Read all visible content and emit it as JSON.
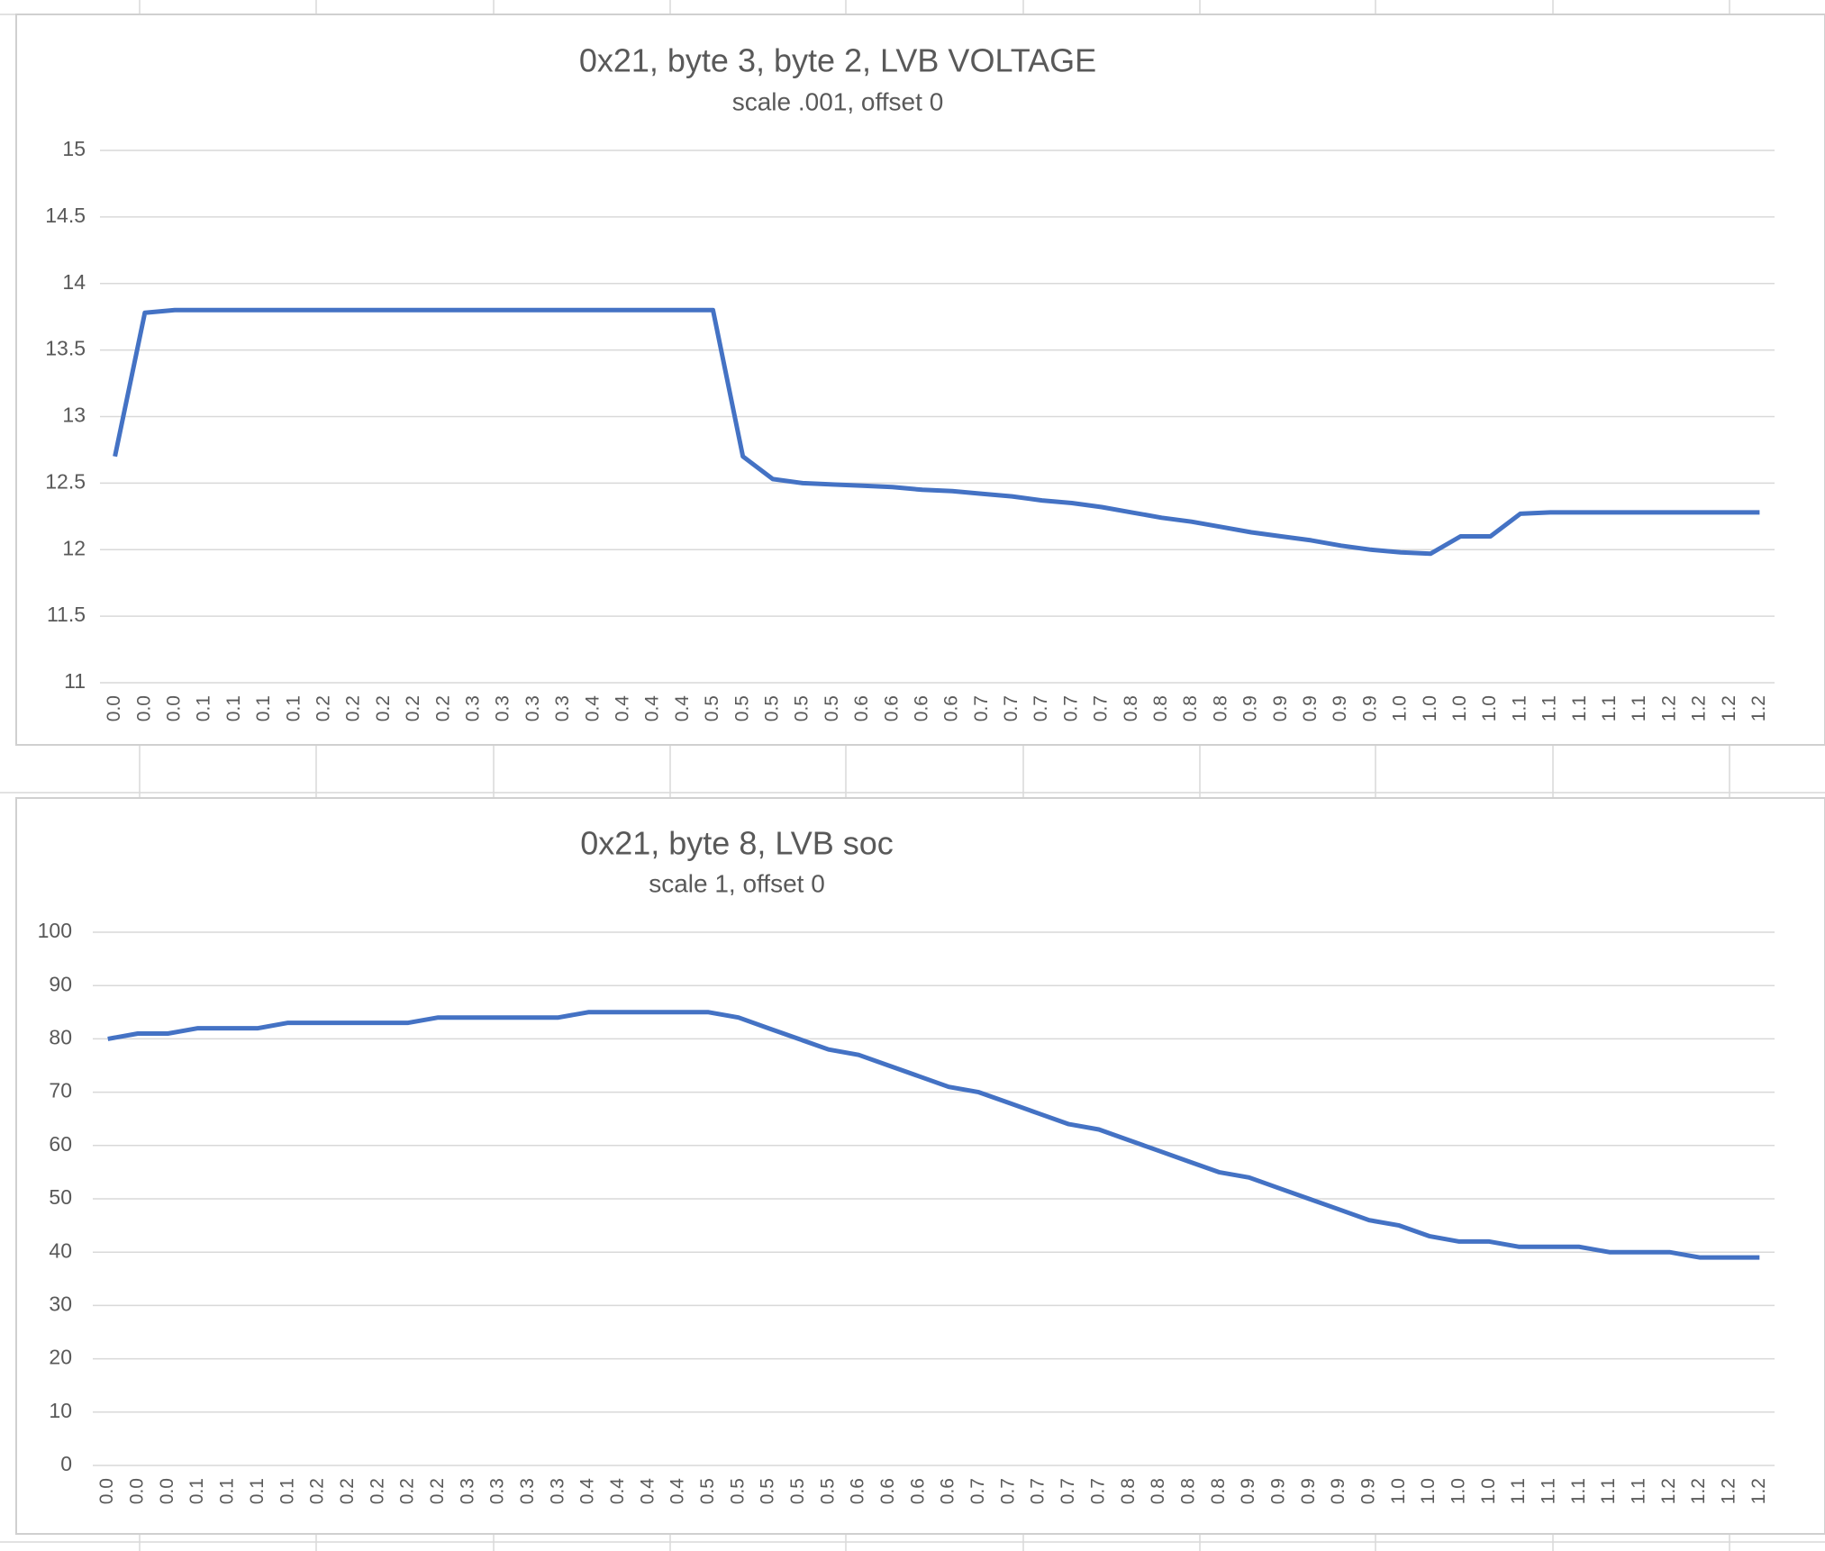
{
  "chart_data": [
    {
      "type": "line",
      "title": "0x21, byte 3, byte 2, LVB VOLTAGE",
      "subtitle": "scale .001, offset 0",
      "categories": [
        "0.0",
        "0.0",
        "0.0",
        "0.1",
        "0.1",
        "0.1",
        "0.1",
        "0.2",
        "0.2",
        "0.2",
        "0.2",
        "0.2",
        "0.3",
        "0.3",
        "0.3",
        "0.3",
        "0.4",
        "0.4",
        "0.4",
        "0.4",
        "0.5",
        "0.5",
        "0.5",
        "0.5",
        "0.5",
        "0.6",
        "0.6",
        "0.6",
        "0.6",
        "0.7",
        "0.7",
        "0.7",
        "0.7",
        "0.7",
        "0.8",
        "0.8",
        "0.8",
        "0.8",
        "0.9",
        "0.9",
        "0.9",
        "0.9",
        "0.9",
        "1.0",
        "1.0",
        "1.0",
        "1.0",
        "1.1",
        "1.1",
        "1.1",
        "1.1",
        "1.1",
        "1.2",
        "1.2",
        "1.2",
        "1.2"
      ],
      "series": [
        {
          "name": "LVB VOLTAGE",
          "color": "#4472c4",
          "values": [
            12.7,
            13.78,
            13.8,
            13.8,
            13.8,
            13.8,
            13.8,
            13.8,
            13.8,
            13.8,
            13.8,
            13.8,
            13.8,
            13.8,
            13.8,
            13.8,
            13.8,
            13.8,
            13.8,
            13.8,
            13.8,
            12.7,
            12.53,
            12.5,
            12.49,
            12.48,
            12.47,
            12.45,
            12.44,
            12.42,
            12.4,
            12.37,
            12.35,
            12.32,
            12.28,
            12.24,
            12.21,
            12.17,
            12.13,
            12.1,
            12.07,
            12.03,
            12.0,
            11.98,
            11.97,
            12.1,
            12.1,
            12.27,
            12.28,
            12.28,
            12.28,
            12.28,
            12.28,
            12.28,
            12.28,
            12.28
          ]
        }
      ],
      "ylim": [
        11,
        15
      ],
      "yticks": [
        11,
        11.5,
        12,
        12.5,
        13,
        13.5,
        14,
        14.5,
        15
      ],
      "grid": true
    },
    {
      "type": "line",
      "title": "0x21, byte 8, LVB soc",
      "subtitle": "scale 1, offset 0",
      "categories": [
        "0.0",
        "0.0",
        "0.0",
        "0.1",
        "0.1",
        "0.1",
        "0.1",
        "0.2",
        "0.2",
        "0.2",
        "0.2",
        "0.2",
        "0.3",
        "0.3",
        "0.3",
        "0.3",
        "0.4",
        "0.4",
        "0.4",
        "0.4",
        "0.5",
        "0.5",
        "0.5",
        "0.5",
        "0.5",
        "0.6",
        "0.6",
        "0.6",
        "0.6",
        "0.7",
        "0.7",
        "0.7",
        "0.7",
        "0.7",
        "0.8",
        "0.8",
        "0.8",
        "0.8",
        "0.9",
        "0.9",
        "0.9",
        "0.9",
        "0.9",
        "1.0",
        "1.0",
        "1.0",
        "1.0",
        "1.1",
        "1.1",
        "1.1",
        "1.1",
        "1.1",
        "1.2",
        "1.2",
        "1.2",
        "1.2"
      ],
      "series": [
        {
          "name": "LVB soc",
          "color": "#4472c4",
          "values": [
            80,
            81,
            81,
            82,
            82,
            82,
            83,
            83,
            83,
            83,
            83,
            84,
            84,
            84,
            84,
            84,
            85,
            85,
            85,
            85,
            85,
            84,
            82,
            80,
            78,
            77,
            75,
            73,
            71,
            70,
            68,
            66,
            64,
            63,
            61,
            59,
            57,
            55,
            54,
            52,
            50,
            48,
            46,
            45,
            43,
            42,
            42,
            41,
            41,
            41,
            40,
            40,
            40,
            39,
            39,
            39
          ]
        }
      ],
      "ylim": [
        0,
        100
      ],
      "yticks": [
        0,
        10,
        20,
        30,
        40,
        50,
        60,
        70,
        80,
        90,
        100
      ],
      "grid": true
    }
  ]
}
